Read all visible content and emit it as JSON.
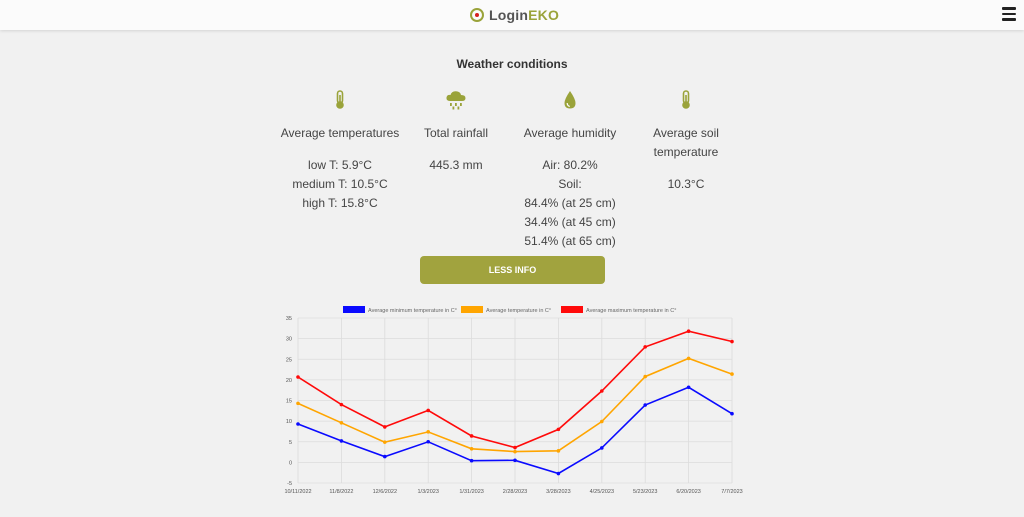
{
  "header": {
    "logo_part1": "Login",
    "logo_part2": "EKO",
    "accent": "#9aa33a"
  },
  "section": {
    "title": "Weather conditions"
  },
  "cards": {
    "temperature": {
      "icon": "thermometer-icon",
      "label": "Average temperatures",
      "lines": [
        "low T: 5.9°C",
        "medium T: 10.5°C",
        "high T: 15.8°C"
      ]
    },
    "rainfall": {
      "icon": "rain-cloud-icon",
      "label": "Total rainfall",
      "lines": [
        "445.3 mm"
      ]
    },
    "humidity": {
      "icon": "water-drop-icon",
      "label": "Average humidity",
      "lines": [
        "Air: 80.2%",
        "Soil:",
        "84.4% (at 25 cm)",
        "34.4% (at 45 cm)",
        "51.4% (at 65 cm)"
      ]
    },
    "soil": {
      "icon": "thermometer-icon",
      "label_line1": "Average soil",
      "label_line2": "temperature",
      "lines": [
        "10.3°C"
      ]
    }
  },
  "button": {
    "less_info": "LESS INFO",
    "color": "#a1a33e"
  },
  "chart_data": {
    "type": "line",
    "categories": [
      "10/11/2022",
      "11/8/2022",
      "12/6/2022",
      "1/3/2023",
      "1/31/2023",
      "2/28/2023",
      "3/28/2023",
      "4/25/2023",
      "5/23/2023",
      "6/20/2023",
      "7/7/2023"
    ],
    "series": [
      {
        "name": "Average minimum temperature in C°",
        "color": "#0a0aff",
        "values": [
          9.3,
          5.2,
          1.4,
          5.0,
          0.4,
          0.5,
          -2.7,
          3.5,
          13.9,
          18.2,
          11.8
        ]
      },
      {
        "name": "Average temperature in C°",
        "color": "#ffa500",
        "values": [
          14.3,
          9.6,
          4.9,
          7.4,
          3.3,
          2.6,
          2.8,
          9.9,
          20.8,
          25.2,
          21.4
        ]
      },
      {
        "name": "Average maximum temperature in C°",
        "color": "#ff0a0a",
        "values": [
          20.7,
          14.0,
          8.6,
          12.6,
          6.4,
          3.6,
          8.0,
          17.3,
          28.0,
          31.8,
          29.3
        ]
      }
    ],
    "yticks": [
      35,
      30,
      25,
      20,
      15,
      10,
      5,
      0,
      -5
    ],
    "ylim": [
      -5,
      35
    ],
    "grid": true,
    "legend": "top"
  }
}
